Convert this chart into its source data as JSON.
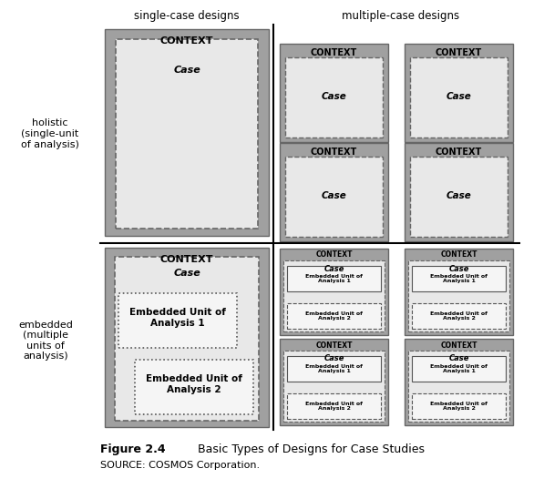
{
  "title": "Figure 2.4",
  "title_desc": "Basic Types of Designs for Case Studies",
  "source": "SOURCE: COSMOS Corporation.",
  "col_header_left": "single-case designs",
  "col_header_right": "multiple-case designs",
  "row_header_top": "holistic\n(single-unit\nof analysis)",
  "row_header_bottom": "embedded\n(multiple\nunits of\nanalysis)",
  "bg_color": "#ffffff",
  "gray_outer": "#a0a0a0",
  "gray_inner": "#e8e8e8",
  "white_box": "#f5f5f5"
}
